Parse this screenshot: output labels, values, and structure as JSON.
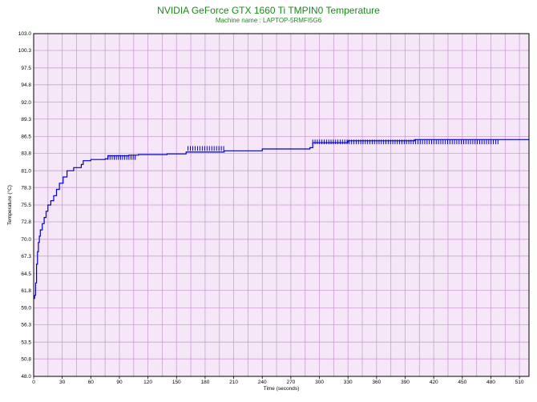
{
  "chart_data": {
    "type": "line",
    "title": "NVIDIA GeForce GTX 1660 Ti TMPIN0 Temperature",
    "subtitle": "Machine name : LAPTOP-5RMFI5G6",
    "xlabel": "Time (seconds)",
    "ylabel": "Temperature (°C)",
    "xlim": [
      0,
      520
    ],
    "ylim": [
      48.0,
      103.0
    ],
    "x_ticks": [
      "0",
      "30",
      "60",
      "90",
      "120",
      "150",
      "180",
      "210",
      "240",
      "270",
      "300",
      "330",
      "360",
      "390",
      "420",
      "450",
      "480",
      "510"
    ],
    "y_ticks": [
      "48.0",
      "50.8",
      "53.5",
      "56.3",
      "59.0",
      "61.8",
      "64.5",
      "67.3",
      "70.0",
      "72.8",
      "75.5",
      "78.3",
      "81.0",
      "83.8",
      "86.5",
      "89.3",
      "92.0",
      "94.8",
      "97.5",
      "100.3",
      "103.0"
    ],
    "grid": true,
    "background_color": "#f5e6f8",
    "grid_color": "#c9a0cf",
    "line_color": "#0000cc",
    "title_color": "#1a8a1a",
    "series": [
      {
        "values": [
          [
            0,
            60.5
          ],
          [
            1,
            61
          ],
          [
            2,
            63
          ],
          [
            3,
            66
          ],
          [
            4,
            68
          ],
          [
            5,
            69.5
          ],
          [
            6,
            70.5
          ],
          [
            7,
            71.5
          ],
          [
            9,
            72.5
          ],
          [
            11,
            73.5
          ],
          [
            13,
            74.5
          ],
          [
            15,
            75.5
          ],
          [
            18,
            76.2
          ],
          [
            21,
            77
          ],
          [
            24,
            78
          ],
          [
            27,
            79
          ],
          [
            31,
            80
          ],
          [
            35,
            81
          ],
          [
            42,
            81.5
          ],
          [
            50,
            82
          ],
          [
            52,
            82.6
          ],
          [
            60,
            82.8
          ],
          [
            75,
            82.9
          ],
          [
            78,
            83.4
          ],
          [
            100,
            83.5
          ],
          [
            110,
            83.6
          ],
          [
            140,
            83.7
          ],
          [
            160,
            84.0
          ],
          [
            200,
            84.2
          ],
          [
            240,
            84.5
          ],
          [
            290,
            84.7
          ],
          [
            293,
            85.5
          ],
          [
            330,
            85.8
          ],
          [
            400,
            86.0
          ],
          [
            460,
            86.0
          ],
          [
            520,
            86.1
          ]
        ]
      }
    ]
  }
}
